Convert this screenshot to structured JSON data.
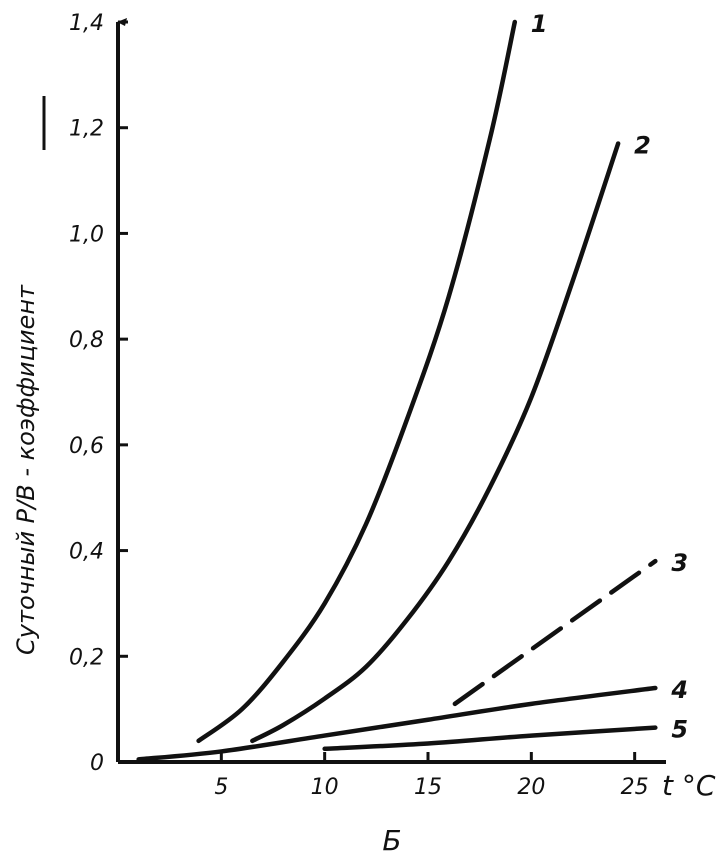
{
  "chart_data": {
    "type": "line",
    "xlabel": "t °C",
    "ylabel": "Суточный P/B - коэффициент",
    "sublabel": "Б",
    "xlim": [
      0,
      27
    ],
    "ylim": [
      0,
      1.4
    ],
    "x_ticks": [
      {
        "value": 5,
        "label": "5"
      },
      {
        "value": 10,
        "label": "10"
      },
      {
        "value": 15,
        "label": "15"
      },
      {
        "value": 20,
        "label": "20"
      },
      {
        "value": 25,
        "label": "25"
      }
    ],
    "y_ticks": [
      {
        "value": 0,
        "label": "0"
      },
      {
        "value": 0.2,
        "label": "0,2"
      },
      {
        "value": 0.4,
        "label": "0,4"
      },
      {
        "value": 0.6,
        "label": "0,6"
      },
      {
        "value": 0.8,
        "label": "0,8"
      },
      {
        "value": 1.0,
        "label": "1,0"
      },
      {
        "value": 1.2,
        "label": "1,2"
      },
      {
        "value": 1.4,
        "label": "1,4"
      }
    ],
    "grid": false,
    "series": [
      {
        "name": "1",
        "dashed": false,
        "x": [
          3.9,
          6,
          8,
          10,
          12,
          14,
          16,
          18,
          19.2
        ],
        "y": [
          0.04,
          0.1,
          0.19,
          0.3,
          0.45,
          0.65,
          0.88,
          1.18,
          1.4
        ]
      },
      {
        "name": "2",
        "dashed": false,
        "x": [
          6.5,
          8,
          10,
          12,
          14,
          16,
          18,
          20,
          22,
          24.2
        ],
        "y": [
          0.04,
          0.07,
          0.12,
          0.18,
          0.27,
          0.38,
          0.52,
          0.69,
          0.91,
          1.17
        ]
      },
      {
        "name": "3",
        "dashed": true,
        "x": [
          16.3,
          26
        ],
        "y": [
          0.11,
          0.38
        ]
      },
      {
        "name": "4",
        "dashed": false,
        "x": [
          1,
          5,
          10,
          15,
          20,
          26
        ],
        "y": [
          0.005,
          0.02,
          0.05,
          0.08,
          0.11,
          0.14
        ]
      },
      {
        "name": "5",
        "dashed": false,
        "x": [
          10,
          15,
          20,
          26
        ],
        "y": [
          0.025,
          0.035,
          0.05,
          0.065
        ]
      }
    ]
  }
}
